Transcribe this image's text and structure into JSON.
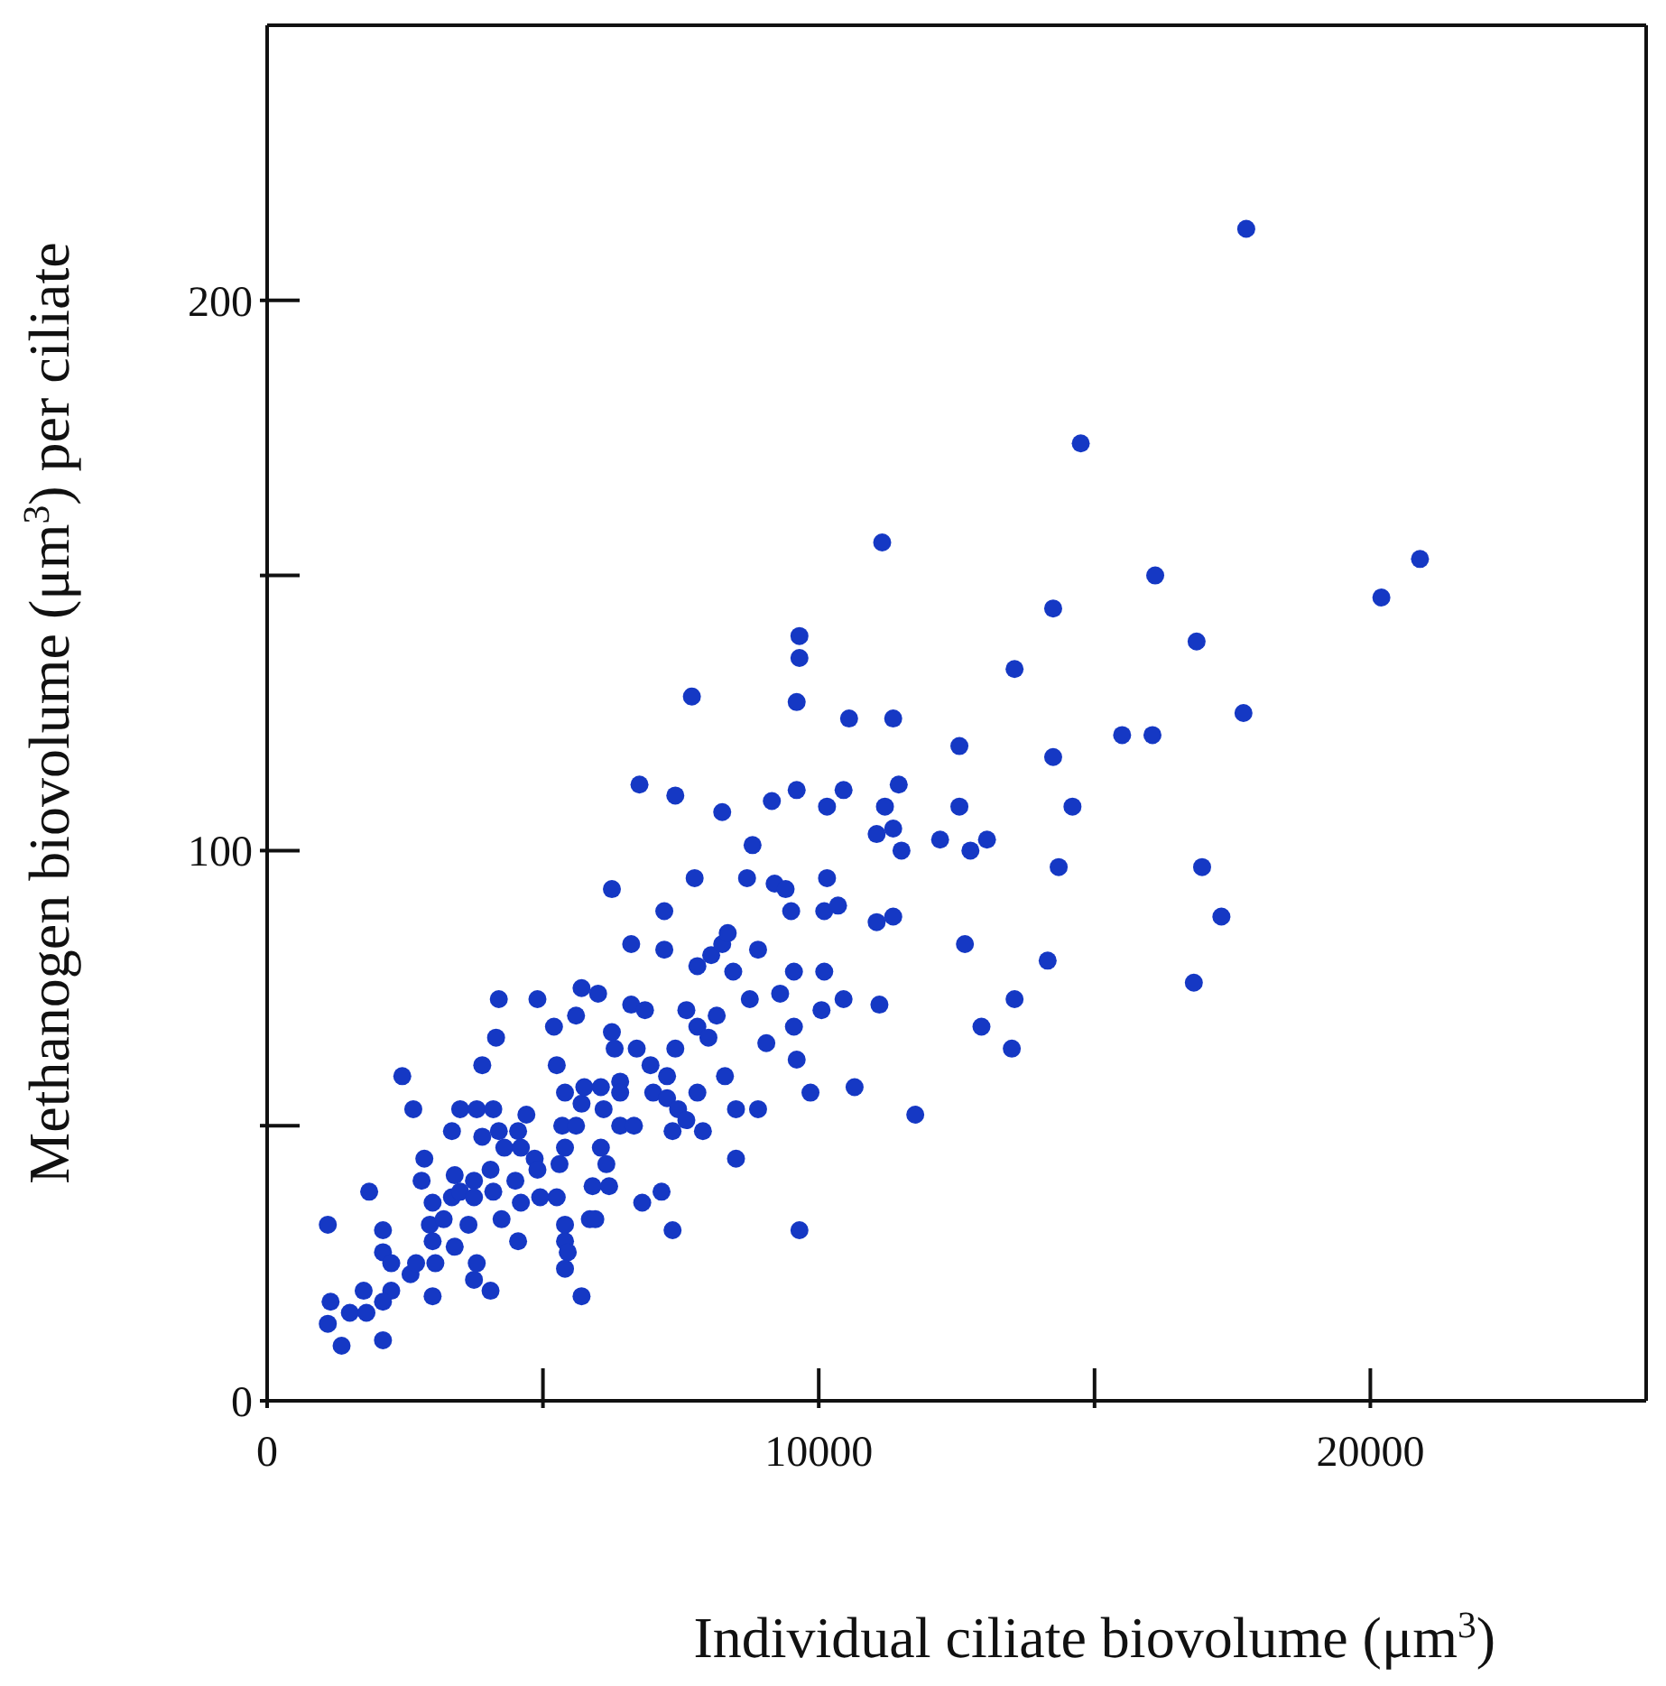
{
  "chart_data": {
    "type": "scatter",
    "xlabel": "Individual ciliate biovolume (μm$^{3}$)",
    "ylabel": "Methanogen biovolume (μm$^{3}$) per ciliate",
    "xlim": [
      0,
      25000
    ],
    "ylim": [
      0,
      250
    ],
    "xticks": [
      0,
      {
        "value": 5000,
        "label": null
      },
      10000,
      {
        "value": 15000,
        "label": null
      },
      20000
    ],
    "yticks": [
      0,
      {
        "value": 50,
        "label": null
      },
      100,
      {
        "value": 150,
        "label": null
      },
      200
    ],
    "marker": "circle",
    "series": [
      {
        "color": "#1538c4",
        "x": [
          1100,
          1150,
          1100,
          1350,
          1500,
          1750,
          1800,
          1850,
          2100,
          2100,
          2250,
          2250,
          2100,
          2100,
          2450,
          2600,
          2650,
          2700,
          2800,
          2850,
          2950,
          3000,
          3000,
          3000,
          3050,
          3200,
          3350,
          3350,
          3400,
          3400,
          3500,
          3500,
          3650,
          3750,
          3750,
          3750,
          3800,
          3800,
          3900,
          3900,
          4050,
          4050,
          4100,
          4100,
          4150,
          4200,
          4200,
          4250,
          4300,
          4500,
          4550,
          4550,
          4600,
          4600,
          4700,
          4850,
          4900,
          4900,
          4950,
          5200,
          5250,
          5250,
          5300,
          5350,
          5400,
          5400,
          5400,
          5400,
          5450,
          5400,
          5600,
          5600,
          5700,
          5700,
          5700,
          5750,
          5850,
          5900,
          5950,
          6000,
          6050,
          6050,
          6100,
          6150,
          6200,
          6250,
          6250,
          6300,
          6400,
          6400,
          6400,
          6600,
          6600,
          6650,
          6700,
          6750,
          6800,
          6850,
          6950,
          7000,
          7150,
          7200,
          7200,
          7250,
          7250,
          7350,
          7350,
          7400,
          7400,
          7450,
          7600,
          7600,
          7700,
          7750,
          7800,
          7800,
          7800,
          7900,
          8000,
          8050,
          8150,
          8250,
          8250,
          8300,
          8350,
          8450,
          8500,
          8500,
          8700,
          8750,
          8800,
          8900,
          8900,
          9050,
          9150,
          9200,
          9300,
          9400,
          9500,
          9550,
          9550,
          9600,
          9600,
          9600,
          9650,
          9650,
          9650,
          9850,
          10050,
          10100,
          10100,
          10150,
          10150,
          10350,
          10450,
          10450,
          10550,
          10650,
          11050,
          11050,
          11100,
          11150,
          11200,
          11350,
          11350,
          11350,
          11450,
          11500,
          11750,
          12200,
          12550,
          12550,
          12650,
          12750,
          12950,
          13050,
          13500,
          13550,
          13550,
          14150,
          14250,
          14250,
          14350,
          14600,
          14750,
          15500,
          16050,
          16100,
          16800,
          16850,
          16950,
          17300,
          17700,
          17750,
          20200,
          20900
        ],
        "values": [
          32,
          18,
          14,
          10,
          16,
          20,
          16,
          38,
          31,
          27,
          25,
          20,
          18,
          11,
          59,
          23,
          53,
          25,
          40,
          44,
          32,
          29,
          19,
          36,
          25,
          33,
          37,
          49,
          41,
          28,
          53,
          38,
          32,
          40,
          37,
          22,
          25,
          53,
          48,
          61,
          42,
          20,
          53,
          38,
          66,
          73,
          49,
          33,
          46,
          40,
          49,
          29,
          46,
          36,
          52,
          44,
          73,
          42,
          37,
          68,
          61,
          37,
          43,
          50,
          46,
          29,
          56,
          32,
          27,
          24,
          70,
          50,
          75,
          54,
          19,
          57,
          33,
          39,
          33,
          74,
          57,
          46,
          53,
          43,
          39,
          93,
          67,
          64,
          58,
          50,
          56,
          72,
          83,
          50,
          64,
          112,
          36,
          71,
          61,
          56,
          38,
          89,
          82,
          59,
          55,
          49,
          31,
          64,
          110,
          53,
          71,
          51,
          128,
          95,
          79,
          68,
          56,
          49,
          66,
          81,
          70,
          83,
          107,
          59,
          85,
          78,
          44,
          53,
          95,
          73,
          101,
          82,
          53,
          65,
          109,
          94,
          74,
          93,
          89,
          78,
          68,
          62,
          127,
          111,
          135,
          139,
          31,
          56,
          71,
          89,
          78,
          108,
          95,
          90,
          73,
          111,
          124,
          57,
          103,
          87,
          72,
          156,
          108,
          104,
          124,
          88,
          112,
          100,
          52,
          102,
          119,
          108,
          83,
          100,
          68,
          102,
          64,
          133,
          73,
          80,
          144,
          117,
          97,
          108,
          174,
          121,
          121,
          150,
          76,
          138,
          97,
          88,
          125,
          213,
          146,
          153
        ]
      }
    ]
  }
}
